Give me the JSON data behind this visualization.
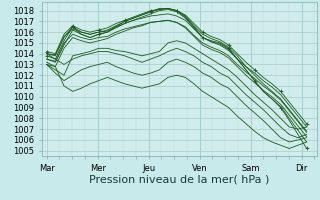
{
  "bg_color": "#c8eaea",
  "plot_bg_color": "#d0ecec",
  "grid_major_color": "#a8cccc",
  "grid_minor_color": "#b8d8d8",
  "line_color": "#1a5c1a",
  "xlabel": "Pression niveau de la mer( hPa )",
  "xlabel_fontsize": 8,
  "tick_fontsize": 6,
  "ylim": [
    1004.5,
    1018.8
  ],
  "yticks": [
    1005,
    1006,
    1007,
    1008,
    1009,
    1010,
    1011,
    1012,
    1013,
    1014,
    1015,
    1016,
    1017,
    1018
  ],
  "day_labels": [
    "Mar",
    "Mer",
    "Jeu",
    "Ven",
    "Sam",
    "Dir"
  ],
  "xlim": [
    -0.1,
    5.3
  ],
  "series": [
    {
      "y": [
        1013.8,
        1013.5,
        1015.2,
        1016.5,
        1015.8,
        1015.5,
        1015.8,
        1016.0,
        1016.5,
        1017.0,
        1017.3,
        1017.6,
        1017.9,
        1018.2,
        1018.2,
        1018.0,
        1017.4,
        1016.5,
        1015.5,
        1015.2,
        1015.0,
        1014.5,
        1013.5,
        1012.5,
        1011.5,
        1010.5,
        1009.8,
        1009.0,
        1007.8,
        1006.5,
        1005.2
      ],
      "marker": true
    },
    {
      "y": [
        1013.5,
        1013.2,
        1014.8,
        1016.2,
        1015.8,
        1015.5,
        1015.8,
        1016.0,
        1016.4,
        1016.8,
        1017.1,
        1017.4,
        1017.7,
        1018.0,
        1018.1,
        1017.9,
        1017.3,
        1016.4,
        1015.5,
        1015.1,
        1014.9,
        1014.4,
        1013.5,
        1012.5,
        1011.5,
        1010.5,
        1009.8,
        1009.1,
        1008.0,
        1006.9,
        1005.8
      ],
      "marker": false
    },
    {
      "y": [
        1014.0,
        1013.8,
        1015.5,
        1016.5,
        1016.0,
        1015.8,
        1016.0,
        1016.2,
        1016.6,
        1017.0,
        1017.3,
        1017.6,
        1017.9,
        1018.1,
        1018.2,
        1018.0,
        1017.5,
        1016.6,
        1015.8,
        1015.4,
        1015.1,
        1014.6,
        1013.8,
        1012.8,
        1012.0,
        1011.2,
        1010.5,
        1009.8,
        1008.8,
        1007.8,
        1006.8
      ],
      "marker": false
    },
    {
      "y": [
        1014.2,
        1014.0,
        1015.8,
        1016.6,
        1016.2,
        1016.0,
        1016.2,
        1016.4,
        1016.8,
        1017.1,
        1017.4,
        1017.7,
        1018.0,
        1018.1,
        1018.2,
        1018.0,
        1017.6,
        1016.8,
        1016.0,
        1015.6,
        1015.3,
        1014.8,
        1014.0,
        1013.2,
        1012.5,
        1011.8,
        1011.2,
        1010.5,
        1009.5,
        1008.5,
        1007.5
      ],
      "marker": true
    },
    {
      "y": [
        1013.0,
        1012.8,
        1014.5,
        1015.5,
        1015.2,
        1015.0,
        1015.2,
        1015.4,
        1015.8,
        1016.1,
        1016.4,
        1016.6,
        1016.9,
        1017.0,
        1017.1,
        1016.9,
        1016.4,
        1015.6,
        1014.8,
        1014.4,
        1014.1,
        1013.6,
        1012.8,
        1012.0,
        1011.3,
        1010.6,
        1010.0,
        1009.3,
        1008.3,
        1007.3,
        1006.3
      ],
      "marker": false
    },
    {
      "y": [
        1014.0,
        1013.9,
        1015.6,
        1016.3,
        1016.0,
        1015.8,
        1016.0,
        1016.1,
        1016.5,
        1016.8,
        1017.1,
        1017.3,
        1017.5,
        1017.6,
        1017.7,
        1017.5,
        1017.1,
        1016.3,
        1015.5,
        1015.1,
        1014.8,
        1014.3,
        1013.5,
        1012.8,
        1012.2,
        1011.5,
        1010.9,
        1010.2,
        1009.2,
        1008.2,
        1007.2
      ],
      "marker": false
    },
    {
      "y": [
        1013.5,
        1013.3,
        1015.0,
        1015.8,
        1015.5,
        1015.3,
        1015.5,
        1015.6,
        1016.0,
        1016.3,
        1016.5,
        1016.7,
        1016.9,
        1017.0,
        1017.1,
        1016.9,
        1016.5,
        1015.7,
        1015.0,
        1014.6,
        1014.3,
        1013.8,
        1013.0,
        1012.3,
        1011.7,
        1011.0,
        1010.4,
        1009.7,
        1008.7,
        1007.7,
        1006.7
      ],
      "marker": false
    },
    {
      "y": [
        1013.0,
        1012.5,
        1012.0,
        1013.8,
        1014.0,
        1014.2,
        1014.5,
        1014.5,
        1014.3,
        1014.2,
        1014.0,
        1013.8,
        1014.0,
        1014.2,
        1015.0,
        1015.2,
        1015.0,
        1014.5,
        1014.0,
        1013.5,
        1013.0,
        1012.5,
        1011.8,
        1011.0,
        1010.2,
        1009.5,
        1008.8,
        1008.0,
        1007.2,
        1007.0,
        1007.2
      ],
      "marker": false
    },
    {
      "y": [
        1013.0,
        1012.2,
        1011.5,
        1012.0,
        1012.5,
        1012.8,
        1013.0,
        1013.2,
        1012.8,
        1012.5,
        1012.2,
        1012.0,
        1012.2,
        1012.5,
        1013.2,
        1013.5,
        1013.2,
        1012.8,
        1012.2,
        1011.8,
        1011.2,
        1010.8,
        1010.0,
        1009.2,
        1008.5,
        1007.8,
        1007.0,
        1006.2,
        1005.8,
        1006.0,
        1006.2
      ],
      "marker": false
    },
    {
      "y": [
        1014.0,
        1013.5,
        1013.0,
        1013.5,
        1013.8,
        1014.0,
        1014.2,
        1014.2,
        1014.0,
        1013.8,
        1013.5,
        1013.2,
        1013.5,
        1013.8,
        1014.2,
        1014.5,
        1014.2,
        1013.8,
        1013.2,
        1012.8,
        1012.2,
        1011.8,
        1011.0,
        1010.2,
        1009.5,
        1008.8,
        1008.0,
        1007.2,
        1006.5,
        1006.2,
        1006.5
      ],
      "marker": false
    },
    {
      "y": [
        1013.2,
        1012.8,
        1011.0,
        1010.5,
        1010.8,
        1011.2,
        1011.5,
        1011.8,
        1011.5,
        1011.2,
        1011.0,
        1010.8,
        1011.0,
        1011.2,
        1011.8,
        1012.0,
        1011.8,
        1011.2,
        1010.5,
        1010.0,
        1009.5,
        1009.0,
        1008.2,
        1007.5,
        1006.8,
        1006.2,
        1005.8,
        1005.5,
        1005.2,
        1005.5,
        1005.8
      ],
      "marker": false
    }
  ]
}
